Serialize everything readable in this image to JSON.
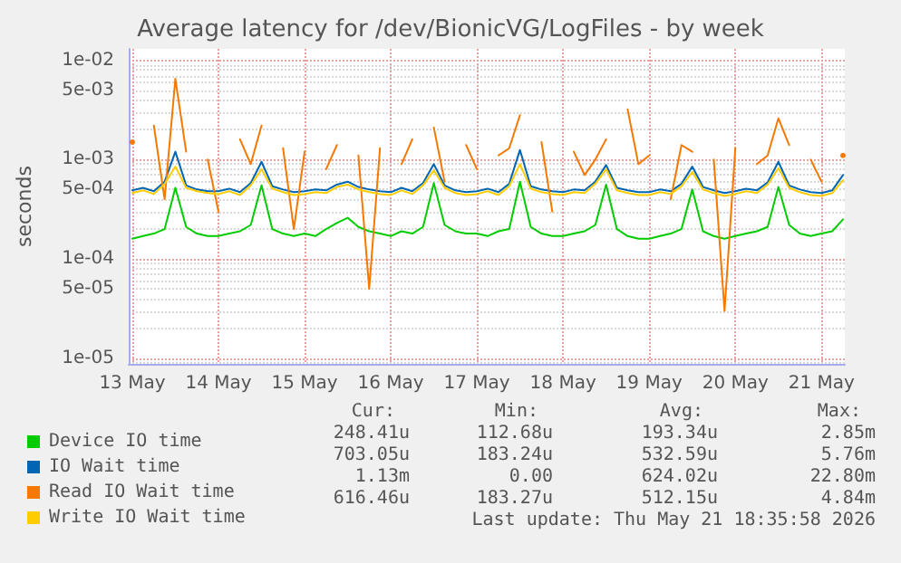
{
  "chart_data": {
    "type": "line",
    "title": "Average latency for /dev/BionicVG/LogFiles - by week",
    "ylabel": "seconds",
    "log": "y",
    "grid": true,
    "legend": "bottom left",
    "marker": "none",
    "line_style": "solid",
    "xlim": [
      "2026-05-12T23:00",
      "2026-05-21T06:30"
    ],
    "xticks": [
      {
        "value": "2026-05-13",
        "label": "13 May"
      },
      {
        "value": "2026-05-14",
        "label": "14 May"
      },
      {
        "value": "2026-05-15",
        "label": "15 May"
      },
      {
        "value": "2026-05-16",
        "label": "16 May"
      },
      {
        "value": "2026-05-17",
        "label": "17 May"
      },
      {
        "value": "2026-05-18",
        "label": "18 May"
      },
      {
        "value": "2026-05-19",
        "label": "19 May"
      },
      {
        "value": "2026-05-20",
        "label": "20 May"
      },
      {
        "value": "2026-05-21",
        "label": "21 May"
      }
    ],
    "ylim": [
      8.8e-06,
      0.013
    ],
    "yticks": [
      {
        "value": 1e-05,
        "label": "1e-05"
      },
      {
        "value": 5e-05,
        "label": "5e-05"
      },
      {
        "value": 0.0001,
        "label": "1e-04"
      },
      {
        "value": 0.0005,
        "label": "5e-04"
      },
      {
        "value": 0.001,
        "label": "1e-03"
      },
      {
        "value": 0.005,
        "label": "5e-03"
      },
      {
        "value": 0.01,
        "label": "1e-02"
      }
    ],
    "x": [
      "2026-05-13T00:00",
      "2026-05-13T03:00",
      "2026-05-13T06:00",
      "2026-05-13T09:00",
      "2026-05-13T12:00",
      "2026-05-13T15:00",
      "2026-05-13T18:00",
      "2026-05-13T21:00",
      "2026-05-14T00:00",
      "2026-05-14T03:00",
      "2026-05-14T06:00",
      "2026-05-14T09:00",
      "2026-05-14T12:00",
      "2026-05-14T15:00",
      "2026-05-14T18:00",
      "2026-05-14T21:00",
      "2026-05-15T00:00",
      "2026-05-15T03:00",
      "2026-05-15T06:00",
      "2026-05-15T09:00",
      "2026-05-15T12:00",
      "2026-05-15T15:00",
      "2026-05-15T18:00",
      "2026-05-15T21:00",
      "2026-05-16T00:00",
      "2026-05-16T03:00",
      "2026-05-16T06:00",
      "2026-05-16T09:00",
      "2026-05-16T12:00",
      "2026-05-16T15:00",
      "2026-05-16T18:00",
      "2026-05-16T21:00",
      "2026-05-17T00:00",
      "2026-05-17T03:00",
      "2026-05-17T06:00",
      "2026-05-17T09:00",
      "2026-05-17T12:00",
      "2026-05-17T15:00",
      "2026-05-17T18:00",
      "2026-05-17T21:00",
      "2026-05-18T00:00",
      "2026-05-18T03:00",
      "2026-05-18T06:00",
      "2026-05-18T09:00",
      "2026-05-18T12:00",
      "2026-05-18T15:00",
      "2026-05-18T18:00",
      "2026-05-18T21:00",
      "2026-05-19T00:00",
      "2026-05-19T03:00",
      "2026-05-19T06:00",
      "2026-05-19T09:00",
      "2026-05-19T12:00",
      "2026-05-19T15:00",
      "2026-05-19T18:00",
      "2026-05-19T21:00",
      "2026-05-20T00:00",
      "2026-05-20T03:00",
      "2026-05-20T06:00",
      "2026-05-20T09:00",
      "2026-05-20T12:00",
      "2026-05-20T15:00",
      "2026-05-20T18:00",
      "2026-05-20T21:00",
      "2026-05-21T00:00",
      "2026-05-21T03:00",
      "2026-05-21T06:00"
    ],
    "series": [
      {
        "name": "Device IO time",
        "color": "#00cc00",
        "values": [
          0.00016,
          0.00017,
          0.00018,
          0.0002,
          0.00052,
          0.00021,
          0.00018,
          0.00017,
          0.00017,
          0.00018,
          0.00019,
          0.00022,
          0.00055,
          0.0002,
          0.00018,
          0.00017,
          0.00018,
          0.00017,
          0.0002,
          0.00023,
          0.00026,
          0.00021,
          0.00019,
          0.00018,
          0.00017,
          0.00019,
          0.00018,
          0.00021,
          0.00058,
          0.00022,
          0.00019,
          0.00018,
          0.00018,
          0.00017,
          0.00019,
          0.0002,
          0.0006,
          0.00021,
          0.00018,
          0.00017,
          0.00017,
          0.00018,
          0.00019,
          0.00022,
          0.00056,
          0.0002,
          0.00017,
          0.00016,
          0.00016,
          0.00017,
          0.00018,
          0.0002,
          0.0005,
          0.00019,
          0.00017,
          0.00016,
          0.00017,
          0.00018,
          0.00019,
          0.00021,
          0.00053,
          0.00022,
          0.00018,
          0.00017,
          0.00018,
          0.00019,
          0.00025
        ]
      },
      {
        "name": "IO Wait time",
        "color": "#0066b3",
        "values": [
          0.00049,
          0.00052,
          0.00048,
          0.0006,
          0.0012,
          0.00055,
          0.0005,
          0.00048,
          0.00048,
          0.00051,
          0.00047,
          0.00058,
          0.00095,
          0.00054,
          0.0005,
          0.00047,
          0.00048,
          0.0005,
          0.00049,
          0.00056,
          0.0006,
          0.00053,
          0.0005,
          0.00048,
          0.00047,
          0.00052,
          0.00048,
          0.00058,
          0.0009,
          0.00055,
          0.00049,
          0.00047,
          0.00048,
          0.00051,
          0.00047,
          0.00057,
          0.00125,
          0.00054,
          0.0005,
          0.00048,
          0.00047,
          0.0005,
          0.00049,
          0.0006,
          0.00088,
          0.00052,
          0.00049,
          0.00047,
          0.00047,
          0.0005,
          0.00048,
          0.00057,
          0.00085,
          0.00053,
          0.00049,
          0.00046,
          0.00048,
          0.00051,
          0.00049,
          0.00059,
          0.00095,
          0.00055,
          0.0005,
          0.00047,
          0.00046,
          0.00049,
          0.0007
        ]
      },
      {
        "name": "Read IO Wait time",
        "color": "#f57900",
        "values": [
          0.0015,
          null,
          0.0022,
          0.0004,
          0.0065,
          0.0012,
          null,
          0.001,
          0.0003,
          null,
          0.0016,
          0.0009,
          0.0022,
          null,
          0.0013,
          0.0002,
          0.0012,
          null,
          0.0008,
          0.0014,
          null,
          0.0011,
          5e-05,
          0.0013,
          null,
          0.0009,
          0.0016,
          null,
          0.0021,
          0.0006,
          null,
          0.0014,
          0.0008,
          null,
          0.0011,
          0.0013,
          0.0028,
          null,
          0.0015,
          0.0003,
          null,
          0.0012,
          0.0007,
          0.001,
          0.0016,
          null,
          0.0032,
          0.0009,
          0.0011,
          null,
          0.0004,
          0.0014,
          0.0012,
          null,
          0.001,
          3e-05,
          0.0013,
          null,
          0.0009,
          0.0011,
          0.0026,
          0.0014,
          null,
          0.001,
          0.0006,
          null,
          0.0011
        ]
      },
      {
        "name": "Write IO Wait time",
        "color": "#ffcc00",
        "values": [
          0.00046,
          0.00049,
          0.00045,
          0.00057,
          0.00085,
          0.00052,
          0.00048,
          0.00046,
          0.00045,
          0.00048,
          0.00044,
          0.00055,
          0.0008,
          0.00051,
          0.00047,
          0.00044,
          0.00045,
          0.00047,
          0.00046,
          0.00053,
          0.00056,
          0.0005,
          0.00047,
          0.00045,
          0.00044,
          0.00049,
          0.00045,
          0.00055,
          0.00078,
          0.00052,
          0.00046,
          0.00044,
          0.00045,
          0.00048,
          0.00044,
          0.00054,
          0.0009,
          0.00051,
          0.00047,
          0.00045,
          0.00044,
          0.00047,
          0.00046,
          0.00057,
          0.0008,
          0.00049,
          0.00046,
          0.00044,
          0.00044,
          0.00047,
          0.00045,
          0.00054,
          0.00075,
          0.0005,
          0.00046,
          0.00043,
          0.00045,
          0.00048,
          0.00046,
          0.00056,
          0.00082,
          0.00052,
          0.00047,
          0.00044,
          0.00043,
          0.00046,
          0.00062
        ]
      }
    ],
    "annotations": [
      "Cur:",
      "Min:",
      "Avg:",
      "Max:",
      "248.41u",
      "112.68u",
      "193.34u",
      "2.85m",
      "703.05u",
      "183.24u",
      "532.59u",
      "5.76m",
      "1.13m",
      "0.00",
      "624.02u",
      "22.80m",
      "616.46u",
      "183.27u",
      "512.15u",
      "4.84m",
      "Last update: Thu May 21 18:35:58 2026"
    ]
  }
}
